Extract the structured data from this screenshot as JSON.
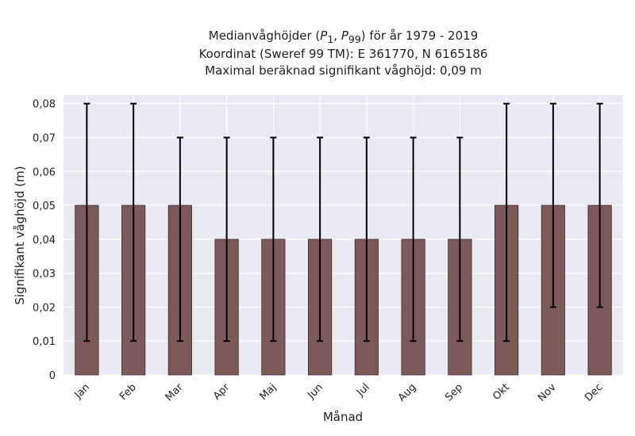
{
  "chart_data": {
    "type": "bar",
    "title_lines": [
      "Medianvåghöjder (P1, P99) för år 1979 - 2019",
      "Koordinat (Sweref 99 TM): E 361770, N 6165186",
      "Maximal beräknad signifikant våghöjd: 0,09 m"
    ],
    "xlabel": "Månad",
    "ylabel": "Signifikant våghöjd (m)",
    "categories": [
      "Jan",
      "Feb",
      "Mar",
      "Apr",
      "Maj",
      "Jun",
      "Jul",
      "Aug",
      "Sep",
      "Okt",
      "Nov",
      "Dec"
    ],
    "values": [
      0.05,
      0.05,
      0.05,
      0.04,
      0.04,
      0.04,
      0.04,
      0.04,
      0.04,
      0.05,
      0.05,
      0.05
    ],
    "error_low": [
      0.01,
      0.01,
      0.01,
      0.01,
      0.01,
      0.01,
      0.01,
      0.01,
      0.01,
      0.01,
      0.02,
      0.02
    ],
    "error_high": [
      0.08,
      0.08,
      0.07,
      0.07,
      0.07,
      0.07,
      0.07,
      0.07,
      0.07,
      0.08,
      0.08,
      0.08
    ],
    "ylim": [
      0,
      0.0825
    ],
    "yticks": [
      0,
      0.01,
      0.02,
      0.03,
      0.04,
      0.05,
      0.06,
      0.07,
      0.08
    ],
    "ytick_labels": [
      "0",
      "0,01",
      "0,02",
      "0,03",
      "0,04",
      "0,05",
      "0,06",
      "0,07",
      "0,08"
    ],
    "grid": true,
    "bar_color": "#7d5a5a",
    "background_color": "#eaeaf2",
    "error_color": "#000000"
  }
}
